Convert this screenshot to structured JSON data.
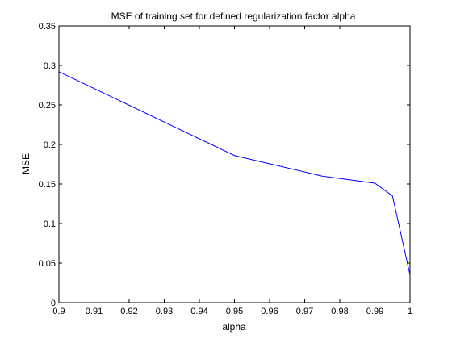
{
  "chart_data": {
    "type": "line",
    "title": "MSE of training set for defined regularization factor alpha",
    "xlabel": "alpha",
    "ylabel": "MSE",
    "xlim": [
      0.9,
      1.0
    ],
    "ylim": [
      0,
      0.35
    ],
    "xticks": [
      0.9,
      0.91,
      0.92,
      0.93,
      0.94,
      0.95,
      0.96,
      0.97,
      0.98,
      0.99,
      1.0
    ],
    "xtick_labels": [
      "0.9",
      "0.91",
      "0.92",
      "0.93",
      "0.94",
      "0.95",
      "0.96",
      "0.97",
      "0.98",
      "0.99",
      "1"
    ],
    "yticks": [
      0,
      0.05,
      0.1,
      0.15,
      0.2,
      0.25,
      0.3,
      0.35
    ],
    "ytick_labels": [
      "0",
      "0.05",
      "0.1",
      "0.15",
      "0.2",
      "0.25",
      "0.3",
      "0.35"
    ],
    "grid": false,
    "legend": "none",
    "colors": {
      "line": "#0000ff",
      "axes": "#000000",
      "background": "#ffffff"
    },
    "series": [
      {
        "x": [
          0.9,
          0.95,
          0.975,
          0.99,
          0.995,
          1.0
        ],
        "y": [
          0.292,
          0.186,
          0.16,
          0.151,
          0.135,
          0.035
        ]
      }
    ]
  }
}
